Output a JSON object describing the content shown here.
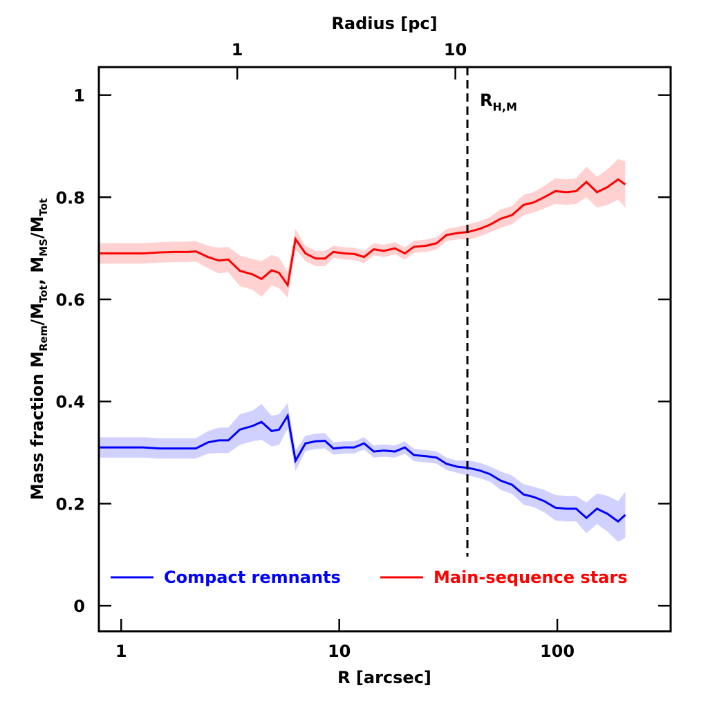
{
  "chart_data": {
    "type": "line",
    "xlabel": "R [arcsec]",
    "x2label": "Radius [pc]",
    "ylabel": [
      "Mass fraction  M",
      "Rem",
      "/M",
      "Tot",
      ",  M",
      "MS",
      "/M",
      "Tot"
    ],
    "xscale": "log",
    "xlim": [
      0.79,
      331
    ],
    "xticks": [
      1,
      10,
      100
    ],
    "x2lim": [
      0.232,
      97.1
    ],
    "x2ticks": [
      1,
      10
    ],
    "ylim": [
      -0.05,
      1.055
    ],
    "yticks": [
      0,
      0.2,
      0.4,
      0.6,
      0.8,
      1
    ],
    "legend": "lower center",
    "x": [
      0.79,
      1.0,
      1.26,
      1.5,
      1.75,
      2.0,
      2.2,
      2.5,
      2.8,
      3.1,
      3.5,
      4.0,
      4.4,
      4.9,
      5.3,
      5.8,
      6.3,
      7.0,
      7.8,
      8.6,
      9.4,
      10.5,
      11.7,
      13.0,
      14.4,
      16,
      18,
      20,
      22,
      25,
      28,
      31,
      35,
      39,
      44,
      49,
      55,
      62,
      70,
      78,
      87,
      98,
      110,
      122,
      136,
      152,
      170,
      190,
      205
    ],
    "series": [
      {
        "name": "Compact remnants",
        "color": "#0000ff",
        "values": [
          0.31,
          0.31,
          0.31,
          0.308,
          0.308,
          0.308,
          0.308,
          0.32,
          0.324,
          0.324,
          0.345,
          0.352,
          0.36,
          0.342,
          0.345,
          0.372,
          0.284,
          0.318,
          0.322,
          0.323,
          0.308,
          0.31,
          0.31,
          0.318,
          0.302,
          0.304,
          0.302,
          0.31,
          0.295,
          0.293,
          0.29,
          0.278,
          0.272,
          0.27,
          0.265,
          0.258,
          0.245,
          0.237,
          0.218,
          0.213,
          0.205,
          0.192,
          0.19,
          0.19,
          0.172,
          0.19,
          0.18,
          0.165,
          0.178
        ],
        "errors": [
          0.02,
          0.02,
          0.02,
          0.02,
          0.02,
          0.02,
          0.02,
          0.022,
          0.025,
          0.025,
          0.03,
          0.03,
          0.035,
          0.03,
          0.03,
          0.025,
          0.02,
          0.015,
          0.015,
          0.015,
          0.012,
          0.012,
          0.012,
          0.012,
          0.012,
          0.012,
          0.012,
          0.012,
          0.012,
          0.012,
          0.012,
          0.012,
          0.012,
          0.015,
          0.015,
          0.015,
          0.018,
          0.018,
          0.02,
          0.02,
          0.022,
          0.025,
          0.025,
          0.025,
          0.03,
          0.03,
          0.035,
          0.04,
          0.045
        ]
      },
      {
        "name": "Main-sequence stars",
        "color": "#ff0000",
        "values": [
          0.69,
          0.69,
          0.69,
          0.692,
          0.693,
          0.693,
          0.694,
          0.683,
          0.676,
          0.678,
          0.656,
          0.649,
          0.64,
          0.657,
          0.652,
          0.628,
          0.718,
          0.69,
          0.68,
          0.68,
          0.693,
          0.69,
          0.689,
          0.683,
          0.698,
          0.695,
          0.7,
          0.69,
          0.703,
          0.705,
          0.71,
          0.726,
          0.73,
          0.732,
          0.738,
          0.746,
          0.758,
          0.765,
          0.785,
          0.79,
          0.8,
          0.812,
          0.81,
          0.812,
          0.83,
          0.81,
          0.82,
          0.835,
          0.825
        ],
        "errors": [
          0.02,
          0.02,
          0.02,
          0.02,
          0.02,
          0.02,
          0.02,
          0.022,
          0.025,
          0.025,
          0.03,
          0.03,
          0.035,
          0.03,
          0.03,
          0.025,
          0.02,
          0.015,
          0.015,
          0.015,
          0.012,
          0.012,
          0.012,
          0.012,
          0.012,
          0.012,
          0.012,
          0.012,
          0.012,
          0.012,
          0.012,
          0.012,
          0.012,
          0.015,
          0.015,
          0.015,
          0.018,
          0.018,
          0.02,
          0.02,
          0.022,
          0.025,
          0.025,
          0.025,
          0.03,
          0.03,
          0.035,
          0.04,
          0.045
        ]
      }
    ],
    "annotation": {
      "x": 38.7,
      "label": "R",
      "subscript": "H,M"
    }
  }
}
